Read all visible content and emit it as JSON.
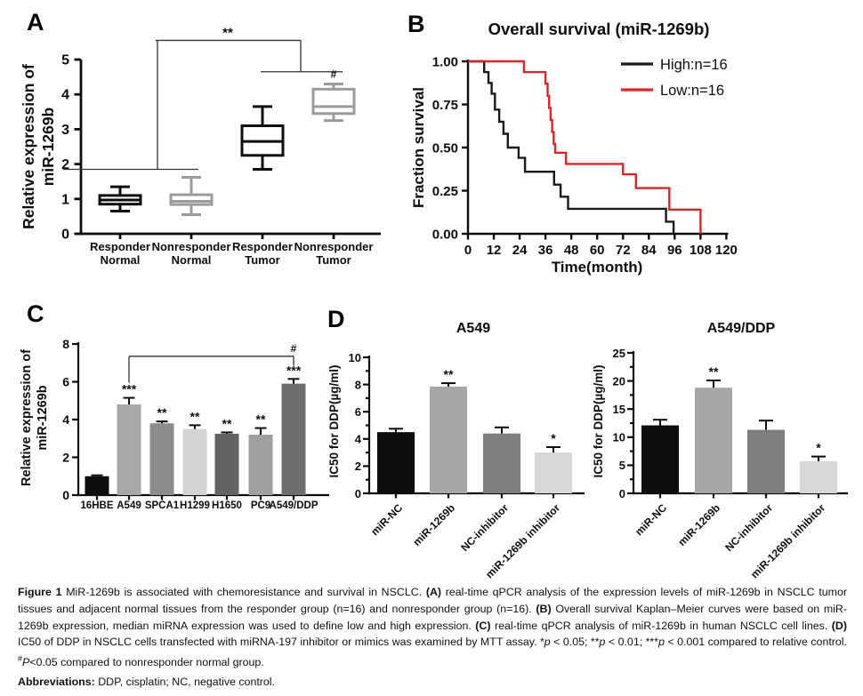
{
  "figure": {
    "panel_labels": {
      "a": "A",
      "b": "B",
      "c": "C",
      "d": "D"
    }
  },
  "colors": {
    "black": "#0d0d0d",
    "box_gray": "#9b9b9b",
    "km_high": "#1a1a1a",
    "km_low": "#d7272b"
  },
  "chart_data": [
    {
      "id": "panelA",
      "type": "boxplot",
      "ylabel": [
        "Relative expression of",
        "miR-1269b"
      ],
      "ylim": [
        0,
        5
      ],
      "yticks": [
        0,
        1,
        2,
        3,
        4,
        5
      ],
      "categories": [
        [
          "Responder",
          "Normal"
        ],
        [
          "Nonresponder",
          "Normal"
        ],
        [
          "Responder",
          "Tumor"
        ],
        [
          "Nonresponder",
          "Tumor"
        ]
      ],
      "boxes": [
        {
          "whisker_low": 0.65,
          "q1": 0.85,
          "median": 0.97,
          "q3": 1.1,
          "whisker_high": 1.35,
          "color": "#0d0d0d"
        },
        {
          "whisker_low": 0.55,
          "q1": 0.84,
          "median": 0.93,
          "q3": 1.12,
          "whisker_high": 1.62,
          "color": "#9b9b9b"
        },
        {
          "whisker_low": 1.85,
          "q1": 2.25,
          "median": 2.65,
          "q3": 3.1,
          "whisker_high": 3.65,
          "color": "#0d0d0d"
        },
        {
          "whisker_low": 3.25,
          "q1": 3.45,
          "median": 3.65,
          "q3": 4.15,
          "whisker_high": 4.3,
          "color": "#9b9b9b"
        }
      ],
      "significance": {
        "bracket_label": "**",
        "hash_label": "#"
      }
    },
    {
      "id": "panelB",
      "type": "line",
      "title": "Overall survival (miR-1269b)",
      "xlabel": "Time(month)",
      "ylabel": "Fraction survival",
      "xlim": [
        0,
        120
      ],
      "xticks": [
        0,
        12,
        24,
        36,
        48,
        60,
        72,
        84,
        96,
        108,
        120
      ],
      "ylim": [
        0,
        1
      ],
      "yticks": [
        {
          "v": 1.0,
          "label": "1.00"
        },
        {
          "v": 0.75,
          "label": "0.75"
        },
        {
          "v": 0.5,
          "label": "0.50"
        },
        {
          "v": 0.25,
          "label": "0.25"
        },
        {
          "v": 0.0,
          "label": "0.00"
        }
      ],
      "legend_position": "top-right",
      "series": [
        {
          "name": "High:n=16",
          "color": "#1a1a1a",
          "points": [
            [
              0,
              1.0
            ],
            [
              7.5,
              1.0
            ],
            [
              7.5,
              0.9375
            ],
            [
              9.5,
              0.9375
            ],
            [
              9.5,
              0.875
            ],
            [
              11,
              0.875
            ],
            [
              11,
              0.8125
            ],
            [
              12.5,
              0.8125
            ],
            [
              12.5,
              0.72
            ],
            [
              14.5,
              0.72
            ],
            [
              14.5,
              0.65
            ],
            [
              16.5,
              0.65
            ],
            [
              16.5,
              0.58
            ],
            [
              18.5,
              0.58
            ],
            [
              18.5,
              0.5
            ],
            [
              23.5,
              0.5
            ],
            [
              23.5,
              0.44
            ],
            [
              26.5,
              0.44
            ],
            [
              26.5,
              0.36
            ],
            [
              40,
              0.36
            ],
            [
              40,
              0.285
            ],
            [
              43,
              0.285
            ],
            [
              43,
              0.215
            ],
            [
              46.5,
              0.215
            ],
            [
              46.5,
              0.145
            ],
            [
              92,
              0.145
            ],
            [
              92,
              0.07
            ],
            [
              95.5,
              0.07
            ],
            [
              95.5,
              0
            ]
          ]
        },
        {
          "name": "Low:n=16",
          "color": "#d7272b",
          "points": [
            [
              0,
              1.0
            ],
            [
              26,
              1.0
            ],
            [
              26,
              0.9375
            ],
            [
              36,
              0.9375
            ],
            [
              36,
              0.87
            ],
            [
              37,
              0.87
            ],
            [
              37,
              0.8
            ],
            [
              37.7,
              0.8
            ],
            [
              37.7,
              0.73
            ],
            [
              38.4,
              0.73
            ],
            [
              38.4,
              0.66
            ],
            [
              39.1,
              0.66
            ],
            [
              39.1,
              0.59
            ],
            [
              39.8,
              0.59
            ],
            [
              39.8,
              0.52
            ],
            [
              40.5,
              0.52
            ],
            [
              40.5,
              0.47
            ],
            [
              45.5,
              0.47
            ],
            [
              45.5,
              0.405
            ],
            [
              72,
              0.405
            ],
            [
              72,
              0.345
            ],
            [
              78,
              0.345
            ],
            [
              78,
              0.265
            ],
            [
              93.5,
              0.265
            ],
            [
              93.5,
              0.14
            ],
            [
              108,
              0.14
            ],
            [
              108,
              0
            ]
          ]
        }
      ]
    },
    {
      "id": "panelC",
      "type": "bar",
      "ylabel": [
        "Relative expression of",
        "miR-1269b"
      ],
      "ylim": [
        0,
        8
      ],
      "yticks": [
        0,
        2,
        4,
        6,
        8
      ],
      "categories": [
        "16HBE",
        "A549",
        "SPCA1",
        "H1299",
        "H1650",
        "PC9",
        "A549/DDP"
      ],
      "values": [
        1.0,
        4.8,
        3.8,
        3.5,
        3.25,
        3.2,
        5.9
      ],
      "errors": [
        0.05,
        0.35,
        0.1,
        0.2,
        0.07,
        0.35,
        0.25
      ],
      "sig": [
        "",
        "***",
        "**",
        "**",
        "**",
        "**",
        "***"
      ],
      "colors": [
        "#0d0d0d",
        "#a8a8a8",
        "#8c8c8c",
        "#d3d3d3",
        "#636363",
        "#9f9f9f",
        "#6d6d6d"
      ],
      "bracket": {
        "from": "A549",
        "to": "A549/DDP",
        "label": "#"
      }
    },
    {
      "id": "panelD1",
      "type": "bar",
      "title": "A549",
      "ylabel": "IC50 for DDP(µg/ml)",
      "ylim": [
        0,
        10
      ],
      "yticks": [
        0,
        2,
        4,
        6,
        8,
        10
      ],
      "categories": [
        "miR-NC",
        "miR-1269b",
        "NC-inhibitor",
        "miR-1269b inhibitor"
      ],
      "values": [
        4.5,
        7.85,
        4.4,
        3.0
      ],
      "errors": [
        0.25,
        0.25,
        0.45,
        0.4
      ],
      "sig": [
        "",
        "**",
        "",
        "*"
      ],
      "colors": [
        "#0d0d0d",
        "#a6a6a6",
        "#7e7e7e",
        "#d8d8d8"
      ]
    },
    {
      "id": "panelD2",
      "type": "bar",
      "title": "A549/DDP",
      "ylabel": "IC50 for DDP(µg/ml)",
      "ylim": [
        0,
        25
      ],
      "yticks": [
        0,
        5,
        10,
        15,
        20,
        25
      ],
      "categories": [
        "miR-NC",
        "miR-1269b",
        "NC-inhibitor",
        "miR-1269b inhibitor"
      ],
      "values": [
        12.1,
        18.8,
        11.3,
        5.7
      ],
      "errors": [
        1.0,
        1.3,
        1.65,
        0.85
      ],
      "sig": [
        "",
        "**",
        "",
        "*"
      ],
      "colors": [
        "#0d0d0d",
        "#a6a6a6",
        "#7e7e7e",
        "#d8d8d8"
      ]
    }
  ],
  "caption": {
    "main_segments": [
      {
        "t": "Figure 1 ",
        "b": true
      },
      {
        "t": "MiR-1269b is associated with chemoresistance and survival in NSCLC. "
      },
      {
        "t": "(A)",
        "b": true
      },
      {
        "t": " real-time qPCR analysis of the expression levels of miR-1269b in NSCLC tumor tissues and adjacent normal tissues from the responder group (n=16) and nonresponder group (n=16). "
      },
      {
        "t": "(B)",
        "b": true
      },
      {
        "t": " Overall survival Kaplan–Meier curves were based on miR-1269b expression, median miRNA expression was used to define low and high expression. "
      },
      {
        "t": "(C)",
        "b": true
      },
      {
        "t": " real-time qPCR analysis of miR-1269b in human NSCLC cell lines. "
      },
      {
        "t": "(D)",
        "b": true
      },
      {
        "t": " IC50 of DDP in NSCLC cells transfected with miRNA-197 inhibitor or mimics was examined by MTT assay. *"
      },
      {
        "t": "p",
        "i": true
      },
      {
        "t": " < 0.05; **"
      },
      {
        "t": "p",
        "i": true
      },
      {
        "t": " < 0.01; ***"
      },
      {
        "t": "p",
        "i": true
      },
      {
        "t": " < 0.001 compared to relative control. "
      },
      {
        "t": "#",
        "sup": true
      },
      {
        "t": "P",
        "i": true
      },
      {
        "t": "<0.05 compared to nonresponder normal group."
      }
    ],
    "abbrev_segments": [
      {
        "t": "Abbreviations:",
        "b": true
      },
      {
        "t": " DDP, cisplatin; NC, negative control."
      }
    ]
  }
}
